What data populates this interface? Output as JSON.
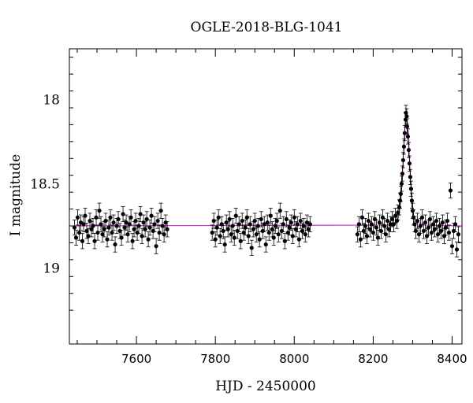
{
  "chart_data": {
    "type": "scatter",
    "title": "OGLE-2018-BLG-1041",
    "xlabel": "HJD - 2450000",
    "ylabel": "I magnitude",
    "xlim": [
      7430,
      8425
    ],
    "ylim": [
      19.45,
      17.7
    ],
    "y_inverted": true,
    "xticks": [
      7600,
      7800,
      8000,
      8200,
      8400
    ],
    "xtick_labels": [
      "7600",
      "7800",
      "8000",
      "8200",
      "8400"
    ],
    "yticks": [
      18,
      18.5,
      19
    ],
    "ytick_labels": [
      "18",
      "18.5",
      "19"
    ],
    "grid": false,
    "colors": {
      "points": "#000000",
      "model": "#cc33cc"
    },
    "model": {
      "name": "model",
      "baseline_mag": 18.75,
      "peak_time": 8284,
      "peak_mag": 18.1,
      "x": [
        7440,
        8240,
        8250,
        8260,
        8265,
        8270,
        8274,
        8278,
        8281,
        8284,
        8287,
        8290,
        8294,
        8298,
        8303,
        8310,
        8320,
        8330,
        8425
      ],
      "y": [
        18.75,
        18.745,
        18.74,
        18.72,
        18.69,
        18.6,
        18.45,
        18.25,
        18.14,
        18.1,
        18.14,
        18.25,
        18.45,
        18.6,
        18.69,
        18.72,
        18.74,
        18.745,
        18.75
      ]
    },
    "series": [
      {
        "values": [
          [
            7443,
            18.76
          ],
          [
            7447,
            18.82
          ],
          [
            7451,
            18.7
          ],
          [
            7455,
            18.79
          ],
          [
            7459,
            18.73
          ],
          [
            7463,
            18.84
          ],
          [
            7466,
            18.74
          ],
          [
            7470,
            18.69
          ],
          [
            7474,
            18.78
          ],
          [
            7478,
            18.81
          ],
          [
            7482,
            18.72
          ],
          [
            7486,
            18.77
          ],
          [
            7490,
            18.75
          ],
          [
            7494,
            18.84
          ],
          [
            7498,
            18.7
          ],
          [
            7502,
            18.79
          ],
          [
            7506,
            18.66
          ],
          [
            7510,
            18.74
          ],
          [
            7514,
            18.8
          ],
          [
            7518,
            18.77
          ],
          [
            7522,
            18.72
          ],
          [
            7526,
            18.83
          ],
          [
            7530,
            18.76
          ],
          [
            7534,
            18.7
          ],
          [
            7538,
            18.79
          ],
          [
            7542,
            18.73
          ],
          [
            7546,
            18.86
          ],
          [
            7550,
            18.75
          ],
          [
            7554,
            18.71
          ],
          [
            7558,
            18.78
          ],
          [
            7562,
            18.82
          ],
          [
            7566,
            18.68
          ],
          [
            7570,
            18.76
          ],
          [
            7574,
            18.73
          ],
          [
            7578,
            18.8
          ],
          [
            7582,
            18.74
          ],
          [
            7586,
            18.7
          ],
          [
            7590,
            18.84
          ],
          [
            7594,
            18.77
          ],
          [
            7598,
            18.72
          ],
          [
            7602,
            18.79
          ],
          [
            7606,
            18.75
          ],
          [
            7610,
            18.68
          ],
          [
            7614,
            18.81
          ],
          [
            7618,
            18.73
          ],
          [
            7622,
            18.77
          ],
          [
            7626,
            18.71
          ],
          [
            7630,
            18.83
          ],
          [
            7634,
            18.76
          ],
          [
            7638,
            18.69
          ],
          [
            7642,
            18.78
          ],
          [
            7646,
            18.74
          ],
          [
            7650,
            18.87
          ],
          [
            7654,
            18.72
          ],
          [
            7658,
            18.79
          ],
          [
            7662,
            18.66
          ],
          [
            7666,
            18.75
          ],
          [
            7670,
            18.8
          ],
          [
            7674,
            18.73
          ],
          [
            7678,
            18.77
          ],
          [
            7792,
            18.79
          ],
          [
            7796,
            18.72
          ],
          [
            7800,
            18.83
          ],
          [
            7804,
            18.76
          ],
          [
            7808,
            18.7
          ],
          [
            7812,
            18.81
          ],
          [
            7816,
            18.74
          ],
          [
            7820,
            18.78
          ],
          [
            7824,
            18.86
          ],
          [
            7828,
            18.73
          ],
          [
            7832,
            18.77
          ],
          [
            7836,
            18.71
          ],
          [
            7840,
            18.8
          ],
          [
            7844,
            18.75
          ],
          [
            7848,
            18.82
          ],
          [
            7852,
            18.69
          ],
          [
            7856,
            18.78
          ],
          [
            7860,
            18.74
          ],
          [
            7864,
            18.84
          ],
          [
            7868,
            18.72
          ],
          [
            7872,
            18.79
          ],
          [
            7876,
            18.76
          ],
          [
            7880,
            18.7
          ],
          [
            7884,
            18.81
          ],
          [
            7888,
            18.74
          ],
          [
            7892,
            18.88
          ],
          [
            7896,
            18.77
          ],
          [
            7900,
            18.72
          ],
          [
            7904,
            18.8
          ],
          [
            7908,
            18.75
          ],
          [
            7912,
            18.83
          ],
          [
            7916,
            18.71
          ],
          [
            7920,
            18.78
          ],
          [
            7924,
            18.74
          ],
          [
            7928,
            18.86
          ],
          [
            7932,
            18.73
          ],
          [
            7936,
            18.79
          ],
          [
            7940,
            18.69
          ],
          [
            7944,
            18.77
          ],
          [
            7948,
            18.82
          ],
          [
            7952,
            18.75
          ],
          [
            7956,
            18.72
          ],
          [
            7960,
            18.8
          ],
          [
            7964,
            18.66
          ],
          [
            7968,
            18.78
          ],
          [
            7972,
            18.74
          ],
          [
            7976,
            18.84
          ],
          [
            7980,
            18.71
          ],
          [
            7984,
            18.79
          ],
          [
            7988,
            18.76
          ],
          [
            7992,
            18.73
          ],
          [
            7996,
            18.81
          ],
          [
            8000,
            18.7
          ],
          [
            8004,
            18.77
          ],
          [
            8008,
            18.74
          ],
          [
            8012,
            18.83
          ],
          [
            8016,
            18.72
          ],
          [
            8020,
            18.78
          ],
          [
            8024,
            18.75
          ],
          [
            8028,
            18.8
          ],
          [
            8032,
            18.73
          ],
          [
            8036,
            18.77
          ],
          [
            8040,
            18.74
          ],
          [
            8160,
            18.8
          ],
          [
            8164,
            18.74
          ],
          [
            8168,
            18.83
          ],
          [
            8172,
            18.7
          ],
          [
            8176,
            18.78
          ],
          [
            8180,
            18.75
          ],
          [
            8184,
            18.81
          ],
          [
            8188,
            18.72
          ],
          [
            8192,
            18.77
          ],
          [
            8196,
            18.74
          ],
          [
            8200,
            18.79
          ],
          [
            8204,
            18.71
          ],
          [
            8208,
            18.76
          ],
          [
            8212,
            18.82
          ],
          [
            8216,
            18.73
          ],
          [
            8220,
            18.78
          ],
          [
            8224,
            18.7
          ],
          [
            8228,
            18.75
          ],
          [
            8232,
            18.8
          ],
          [
            8236,
            18.72
          ],
          [
            8240,
            18.77
          ],
          [
            8244,
            18.74
          ],
          [
            8248,
            18.71
          ],
          [
            8252,
            18.74
          ],
          [
            8256,
            18.69
          ],
          [
            8260,
            18.72
          ],
          [
            8263,
            18.67
          ],
          [
            8266,
            18.64
          ],
          [
            8268,
            18.6
          ],
          [
            8270,
            18.56
          ],
          [
            8272,
            18.5
          ],
          [
            8274,
            18.44
          ],
          [
            8276,
            18.36
          ],
          [
            8278,
            18.28
          ],
          [
            8280,
            18.2
          ],
          [
            8282,
            18.12
          ],
          [
            8283,
            18.08
          ],
          [
            8285,
            18.1
          ],
          [
            8286,
            18.16
          ],
          [
            8288,
            18.22
          ],
          [
            8290,
            18.3
          ],
          [
            8292,
            18.38
          ],
          [
            8294,
            18.46
          ],
          [
            8296,
            18.53
          ],
          [
            8298,
            18.6
          ],
          [
            8300,
            18.66
          ],
          [
            8302,
            18.7
          ],
          [
            8305,
            18.74
          ],
          [
            8308,
            18.78
          ],
          [
            8312,
            18.72
          ],
          [
            8316,
            18.8
          ],
          [
            8320,
            18.75
          ],
          [
            8324,
            18.7
          ],
          [
            8328,
            18.78
          ],
          [
            8332,
            18.73
          ],
          [
            8336,
            18.81
          ],
          [
            8340,
            18.76
          ],
          [
            8344,
            18.71
          ],
          [
            8348,
            18.79
          ],
          [
            8352,
            18.74
          ],
          [
            8356,
            18.77
          ],
          [
            8360,
            18.72
          ],
          [
            8364,
            18.8
          ],
          [
            8368,
            18.75
          ],
          [
            8372,
            18.78
          ],
          [
            8376,
            18.73
          ],
          [
            8380,
            18.81
          ],
          [
            8384,
            18.76
          ],
          [
            8388,
            18.72
          ],
          [
            8392,
            18.79
          ],
          [
            8396,
            18.54
          ],
          [
            8400,
            18.87
          ],
          [
            8404,
            18.78
          ],
          [
            8408,
            18.74
          ],
          [
            8412,
            18.89
          ],
          [
            8416,
            18.8
          ]
        ],
        "error": 0.045
      }
    ]
  }
}
